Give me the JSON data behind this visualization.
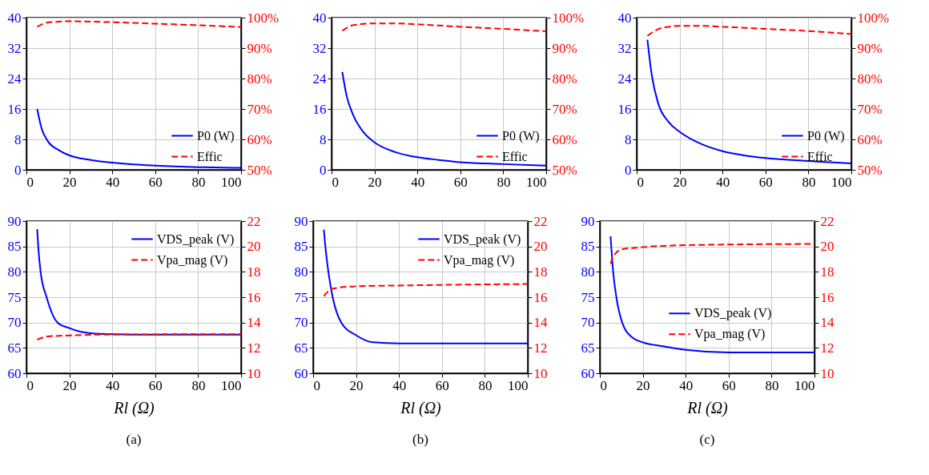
{
  "chart_data": [
    {
      "type": "line",
      "xlim": [
        0,
        100
      ],
      "xticks": [
        0,
        20,
        40,
        60,
        80,
        100
      ],
      "ylim": [
        0,
        40
      ],
      "yticks": [
        0,
        8,
        16,
        24,
        32,
        40
      ],
      "y2lim": [
        50,
        100
      ],
      "y2ticks": [
        {
          "value": 50,
          "label": "50%"
        },
        {
          "value": 60,
          "label": "60%"
        },
        {
          "value": 70,
          "label": "70%"
        },
        {
          "value": 80,
          "label": "80%"
        },
        {
          "value": 90,
          "label": "90%"
        },
        {
          "value": 100,
          "label": "100%"
        }
      ],
      "grid": true,
      "legend": "bottom right",
      "series": [
        {
          "name": "P0 (W)",
          "color": "#0000ff",
          "line_style": "solid",
          "x": [
            5,
            7,
            10,
            15,
            20,
            30,
            40,
            50,
            60,
            80,
            100
          ],
          "values": [
            16,
            11,
            7.5,
            5.2,
            3.8,
            2.6,
            1.9,
            1.4,
            1.1,
            0.7,
            0.5
          ]
        },
        {
          "name": "Effic",
          "color": "#ff0000",
          "line_style": "dashed",
          "axis": "y2",
          "x": [
            5,
            10,
            20,
            40,
            60,
            80,
            100
          ],
          "values": [
            97.0,
            98.4,
            98.8,
            98.5,
            98.0,
            97.5,
            96.9
          ]
        }
      ]
    },
    {
      "type": "line",
      "xlim": [
        0,
        100
      ],
      "xticks": [
        0,
        20,
        40,
        60,
        80,
        100
      ],
      "ylim": [
        0,
        40
      ],
      "yticks": [
        0,
        8,
        16,
        24,
        32,
        40
      ],
      "y2lim": [
        50,
        100
      ],
      "y2ticks": [
        {
          "value": 50,
          "label": "50%"
        },
        {
          "value": 60,
          "label": "60%"
        },
        {
          "value": 70,
          "label": "70%"
        },
        {
          "value": 80,
          "label": "80%"
        },
        {
          "value": 90,
          "label": "90%"
        },
        {
          "value": 100,
          "label": "100%"
        }
      ],
      "grid": true,
      "legend": "bottom right",
      "series": [
        {
          "name": "P0 (W)",
          "color": "#0000ff",
          "line_style": "solid",
          "x": [
            5,
            7,
            10,
            15,
            20,
            30,
            40,
            50,
            60,
            80,
            100
          ],
          "values": [
            25.7,
            19.5,
            14.5,
            9.8,
            7.2,
            4.6,
            3.3,
            2.6,
            2.0,
            1.5,
            1.1
          ]
        },
        {
          "name": "Effic",
          "color": "#ff0000",
          "line_style": "dashed",
          "axis": "y2",
          "x": [
            5,
            10,
            20,
            30,
            40,
            60,
            80,
            100
          ],
          "values": [
            95.7,
            97.5,
            98.1,
            98.1,
            97.8,
            97.0,
            96.3,
            95.5
          ]
        }
      ]
    },
    {
      "type": "line",
      "xlim": [
        0,
        100
      ],
      "xticks": [
        0,
        20,
        40,
        60,
        80,
        100
      ],
      "ylim": [
        0,
        40
      ],
      "yticks": [
        0,
        8,
        16,
        24,
        32,
        40
      ],
      "y2lim": [
        50,
        100
      ],
      "y2ticks": [
        {
          "value": 50,
          "label": "50%"
        },
        {
          "value": 60,
          "label": "60%"
        },
        {
          "value": 70,
          "label": "70%"
        },
        {
          "value": 80,
          "label": "80%"
        },
        {
          "value": 90,
          "label": "90%"
        },
        {
          "value": 100,
          "label": "100%"
        }
      ],
      "grid": true,
      "legend": "bottom right",
      "series": [
        {
          "name": "P0 (W)",
          "color": "#0000ff",
          "line_style": "solid",
          "x": [
            5,
            7,
            10,
            15,
            20,
            30,
            40,
            50,
            60,
            80,
            100
          ],
          "values": [
            34.2,
            25,
            17.5,
            12.5,
            10.0,
            6.8,
            4.9,
            3.8,
            3.1,
            2.3,
            1.7
          ]
        },
        {
          "name": "Effic",
          "color": "#ff0000",
          "line_style": "dashed",
          "axis": "y2",
          "x": [
            5,
            10,
            15,
            20,
            30,
            40,
            60,
            80,
            100
          ],
          "values": [
            94.0,
            96.2,
            97.0,
            97.3,
            97.3,
            97.0,
            96.3,
            95.6,
            94.6
          ]
        }
      ]
    },
    {
      "type": "line",
      "xlabel": "Rl (Ω)",
      "annotations": [
        "(a)"
      ],
      "xlim": [
        0,
        100
      ],
      "xticks": [
        0,
        20,
        40,
        60,
        80,
        100
      ],
      "ylim": [
        60,
        90
      ],
      "yticks": [
        60,
        65,
        70,
        75,
        80,
        85,
        90
      ],
      "y2lim": [
        10,
        22
      ],
      "y2ticks": [
        10,
        12,
        14,
        16,
        18,
        20,
        22
      ],
      "grid": true,
      "legend": "top right",
      "series": [
        {
          "name": "VDS_peak (V)",
          "color": "#0000ff",
          "line_style": "solid",
          "x": [
            5,
            5.5,
            6.6,
            9.4,
            14.5,
            20,
            25,
            30,
            40,
            60,
            100
          ],
          "values": [
            88.4,
            85,
            80,
            75,
            70,
            68.9,
            68.2,
            67.9,
            67.7,
            67.6,
            67.6
          ]
        },
        {
          "name": "Vpa_mag (V)",
          "color": "#ff0000",
          "line_style": "dashed",
          "axis": "y2",
          "x": [
            5,
            10,
            20,
            40,
            100
          ],
          "values": [
            12.65,
            12.9,
            12.98,
            13.06,
            13.08
          ]
        }
      ]
    },
    {
      "type": "line",
      "xlabel": "Rl (Ω)",
      "annotations": [
        "(b)"
      ],
      "xlim": [
        0,
        100
      ],
      "xticks": [
        0,
        20,
        40,
        60,
        80,
        100
      ],
      "ylim": [
        60,
        90
      ],
      "yticks": [
        60,
        65,
        70,
        75,
        80,
        85,
        90
      ],
      "y2lim": [
        10,
        22
      ],
      "y2ticks": [
        10,
        12,
        14,
        16,
        18,
        20,
        22
      ],
      "grid": true,
      "legend": "top right",
      "series": [
        {
          "name": "VDS_peak (V)",
          "color": "#0000ff",
          "line_style": "solid",
          "x": [
            5,
            5.7,
            7.1,
            9.1,
            13.1,
            20,
            28,
            40,
            100
          ],
          "values": [
            88.3,
            85,
            80,
            75,
            70,
            67.5,
            66.1,
            65.9,
            65.9
          ]
        },
        {
          "name": "Vpa_mag (V)",
          "color": "#ff0000",
          "line_style": "dashed",
          "axis": "y2",
          "x": [
            5,
            8,
            10,
            20,
            40,
            100
          ],
          "values": [
            16.08,
            16.6,
            16.7,
            16.86,
            16.92,
            17.04
          ]
        }
      ]
    },
    {
      "type": "line",
      "xlabel": "Rl (Ω)",
      "annotations": [
        "(c)"
      ],
      "xlim": [
        0,
        100
      ],
      "xticks": [
        0,
        20,
        40,
        60,
        80,
        100
      ],
      "ylim": [
        60,
        90
      ],
      "yticks": [
        60,
        65,
        70,
        75,
        80,
        85,
        90
      ],
      "y2lim": [
        10,
        22
      ],
      "y2ticks": [
        10,
        12,
        14,
        16,
        18,
        20,
        22
      ],
      "grid": true,
      "legend": "right",
      "series": [
        {
          "name": "VDS_peak (V)",
          "color": "#0000ff",
          "line_style": "solid",
          "x": [
            5,
            6.2,
            7.7,
            10.4,
            15,
            20,
            30,
            40,
            60,
            100
          ],
          "values": [
            87.0,
            80,
            75,
            70,
            67.1,
            66.1,
            65.3,
            64.6,
            64.1,
            64.1
          ]
        },
        {
          "name": "Vpa_mag (V)",
          "color": "#ff0000",
          "line_style": "dashed",
          "axis": "y2",
          "x": [
            5,
            6,
            10,
            20,
            40,
            100
          ],
          "values": [
            18.63,
            19.1,
            19.76,
            19.94,
            20.1,
            20.2
          ]
        }
      ]
    }
  ]
}
